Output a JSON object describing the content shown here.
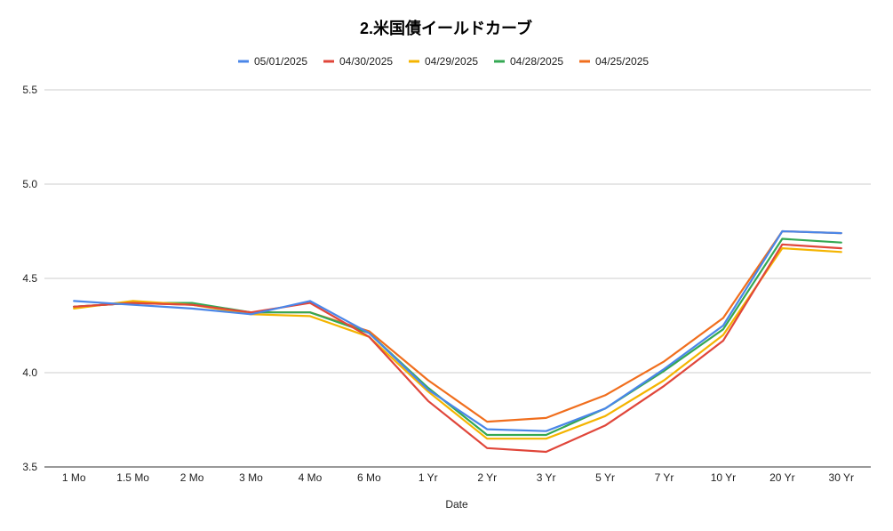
{
  "chart_data": {
    "type": "line",
    "title": "2.米国債イールドカーブ",
    "xlabel": "Date",
    "ylabel": "",
    "ylim": [
      3.5,
      5.5
    ],
    "yticks": [
      3.5,
      4.0,
      4.5,
      5.0,
      5.5
    ],
    "ytick_labels": [
      "3.5",
      "4.0",
      "4.5",
      "5.0",
      "5.5"
    ],
    "grid": true,
    "legend_position": "top",
    "categories": [
      "1 Mo",
      "1.5 Mo",
      "2 Mo",
      "3 Mo",
      "4 Mo",
      "6 Mo",
      "1 Yr",
      "2 Yr",
      "3 Yr",
      "5 Yr",
      "7 Yr",
      "10 Yr",
      "20 Yr",
      "30 Yr"
    ],
    "series": [
      {
        "name": "05/01/2025",
        "color": "#4a86e8",
        "values": [
          4.38,
          4.36,
          4.34,
          4.31,
          4.38,
          4.21,
          3.91,
          3.7,
          3.69,
          3.81,
          4.02,
          4.25,
          4.75,
          4.74
        ]
      },
      {
        "name": "04/30/2025",
        "color": "#e0463a",
        "values": [
          4.35,
          4.37,
          4.36,
          4.32,
          4.37,
          4.19,
          3.85,
          3.6,
          3.58,
          3.72,
          3.93,
          4.17,
          4.68,
          4.66
        ]
      },
      {
        "name": "04/29/2025",
        "color": "#f4b400",
        "values": [
          4.34,
          4.38,
          4.36,
          4.31,
          4.3,
          4.19,
          3.9,
          3.65,
          3.65,
          3.77,
          3.96,
          4.2,
          4.66,
          4.64
        ]
      },
      {
        "name": "04/28/2025",
        "color": "#34a853",
        "values": [
          4.35,
          4.37,
          4.37,
          4.32,
          4.32,
          4.21,
          3.92,
          3.67,
          3.67,
          3.81,
          4.01,
          4.23,
          4.71,
          4.69
        ]
      },
      {
        "name": "04/25/2025",
        "color": "#f06e1d",
        "values": [
          4.35,
          4.37,
          4.36,
          4.32,
          4.32,
          4.22,
          3.96,
          3.74,
          3.76,
          3.88,
          4.06,
          4.29,
          4.75,
          4.74
        ]
      }
    ]
  }
}
